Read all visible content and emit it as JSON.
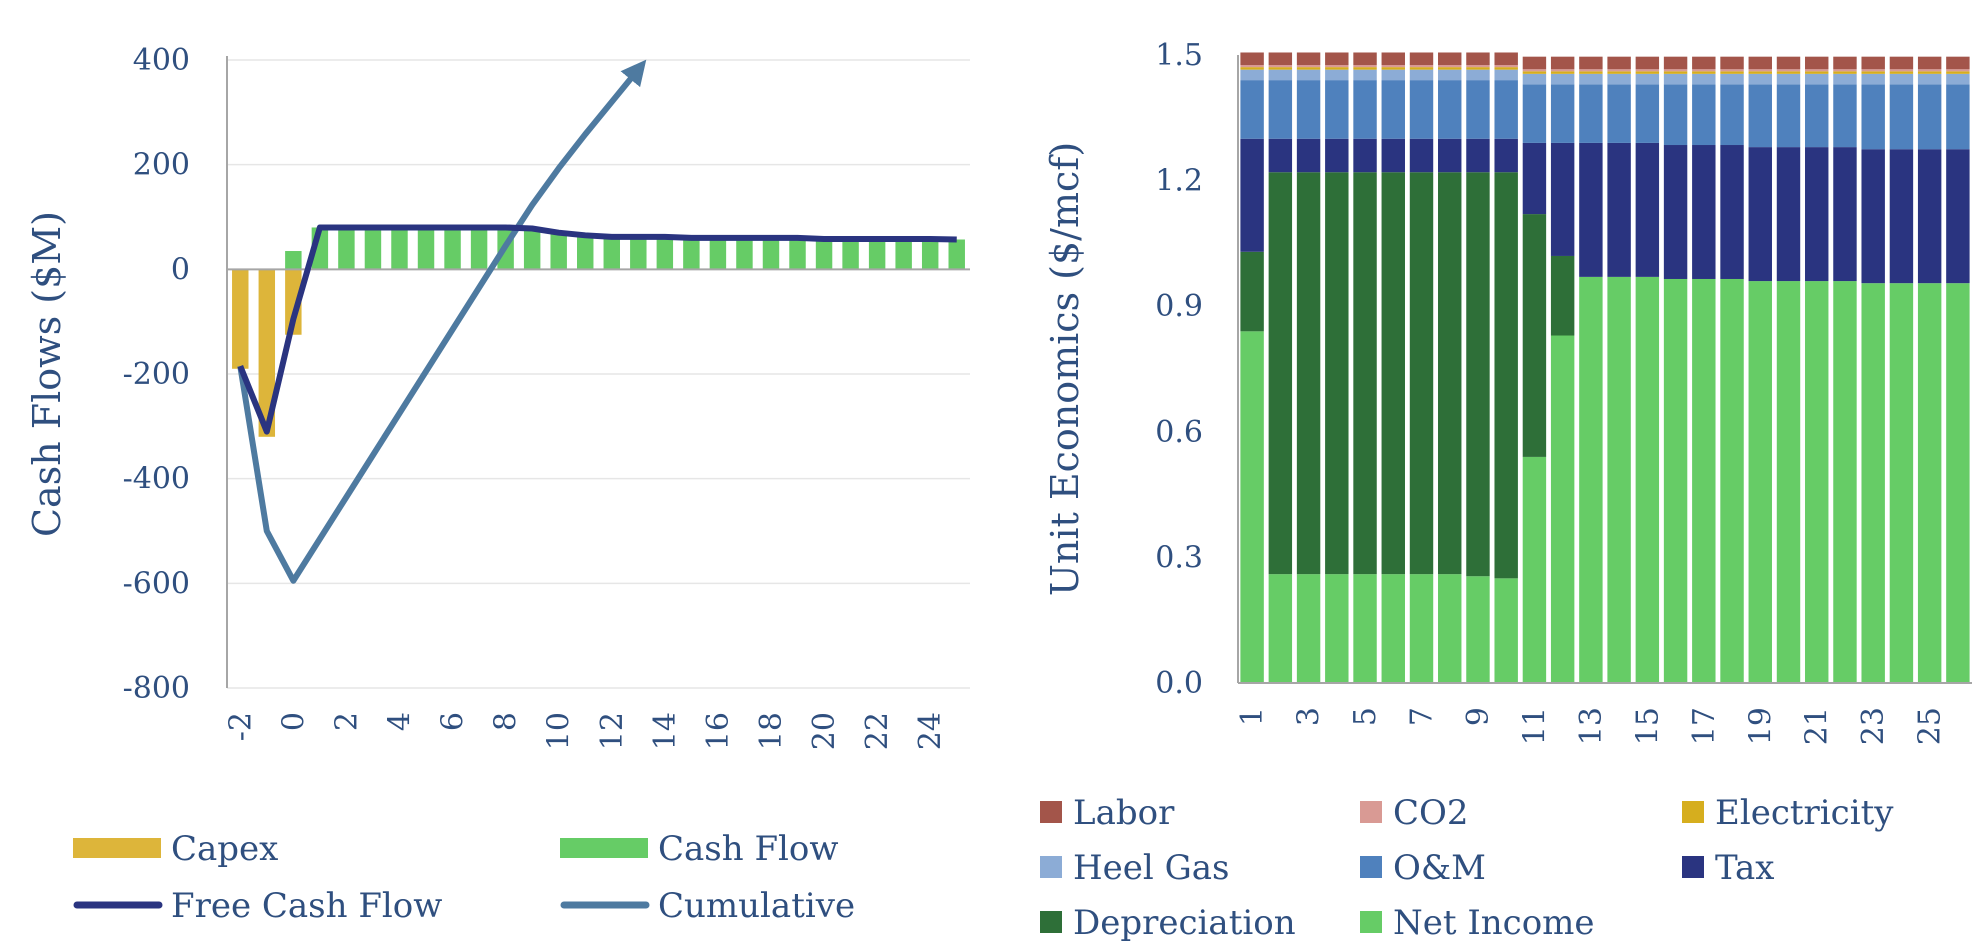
{
  "colors": {
    "axis_text": "#2F4F7F",
    "capex": "#DDB53A",
    "cash_flow": "#66CC66",
    "free_cash_flow": "#2A3480",
    "cumulative": "#4E7AA0",
    "labor": "#A3554A",
    "co2": "#D99A94",
    "electricity": "#D6AE1E",
    "heel_gas": "#8CACD6",
    "om": "#4F81BD",
    "tax": "#2A3480",
    "depreciation": "#2E6F38",
    "net_income": "#66CC66"
  },
  "chart_data": [
    {
      "type": "bar",
      "ylabel": "Cash Flows ($M)",
      "ylim": [
        -800,
        400
      ],
      "yticks": [
        "400",
        "200",
        "0",
        "-200",
        "-400",
        "-600",
        "-800"
      ],
      "xlim": [
        -2.5,
        25.5
      ],
      "xticks": [
        "-2",
        "0",
        "2",
        "4",
        "6",
        "8",
        "10",
        "12",
        "14",
        "16",
        "18",
        "20",
        "22",
        "24"
      ],
      "grid": true,
      "legend_position": "bottom",
      "series": [
        {
          "name": "Capex",
          "kind": "bar",
          "color": "#DDB53A",
          "x": [
            -2,
            -1,
            0
          ],
          "values": [
            -190,
            -320,
            -125
          ]
        },
        {
          "name": "Cash Flow",
          "kind": "bar",
          "color": "#66CC66",
          "x": [
            0,
            1,
            2,
            3,
            4,
            5,
            6,
            7,
            8,
            9,
            10,
            11,
            12,
            13,
            14,
            15,
            16,
            17,
            18,
            19,
            20,
            21,
            22,
            23,
            24,
            25
          ],
          "values": [
            35,
            80,
            80,
            80,
            80,
            80,
            80,
            80,
            80,
            78,
            70,
            65,
            62,
            62,
            62,
            60,
            60,
            60,
            60,
            60,
            58,
            58,
            58,
            58,
            58,
            57
          ]
        },
        {
          "name": "Free Cash Flow",
          "kind": "line",
          "color": "#2A3480",
          "x": [
            -2,
            -1,
            0,
            1,
            2,
            3,
            4,
            5,
            6,
            7,
            8,
            9,
            10,
            11,
            12,
            13,
            14,
            15,
            16,
            17,
            18,
            19,
            20,
            21,
            22,
            23,
            24,
            25
          ],
          "values": [
            -185,
            -310,
            -95,
            80,
            80,
            80,
            80,
            80,
            80,
            80,
            80,
            78,
            70,
            65,
            62,
            62,
            62,
            60,
            60,
            60,
            60,
            60,
            58,
            58,
            58,
            58,
            58,
            57
          ]
        },
        {
          "name": "Cumulative",
          "kind": "line",
          "color": "#4E7AA0",
          "arrow": true,
          "x": [
            -2,
            -1,
            0,
            1,
            2,
            3,
            4,
            5,
            6,
            7,
            8,
            9,
            10,
            11,
            12,
            13
          ],
          "values": [
            -185,
            -500,
            -595,
            -515,
            -435,
            -355,
            -275,
            -195,
            -115,
            -35,
            45,
            123,
            193,
            258,
            320,
            382
          ]
        }
      ]
    },
    {
      "type": "bar",
      "stacked": true,
      "ylabel": "Unit Economics ($/mcf)",
      "ylim": [
        0,
        1.5
      ],
      "yticks": [
        "1.5",
        "1.2",
        "0.9",
        "0.6",
        "0.3",
        "0.0"
      ],
      "categories": [
        "1",
        "2",
        "3",
        "4",
        "5",
        "6",
        "7",
        "8",
        "9",
        "10",
        "11",
        "12",
        "13",
        "14",
        "15",
        "16",
        "17",
        "18",
        "19",
        "20",
        "21",
        "22",
        "23",
        "24",
        "25",
        "26"
      ],
      "xticks": [
        "1",
        "3",
        "5",
        "7",
        "9",
        "11",
        "13",
        "15",
        "17",
        "19",
        "21",
        "23",
        "25"
      ],
      "legend_position": "bottom",
      "series": [
        {
          "name": "Net Income",
          "color": "#66CC66",
          "values": [
            0.84,
            0.26,
            0.26,
            0.26,
            0.26,
            0.26,
            0.26,
            0.26,
            0.255,
            0.25,
            0.54,
            0.83,
            0.97,
            0.97,
            0.97,
            0.965,
            0.965,
            0.965,
            0.96,
            0.96,
            0.96,
            0.96,
            0.955,
            0.955,
            0.955,
            0.955
          ]
        },
        {
          "name": "Depreciation",
          "color": "#2E6F38",
          "values": [
            0.19,
            0.96,
            0.96,
            0.96,
            0.96,
            0.96,
            0.96,
            0.96,
            0.965,
            0.97,
            0.58,
            0.19,
            0,
            0,
            0,
            0,
            0,
            0,
            0,
            0,
            0,
            0,
            0,
            0,
            0,
            0
          ]
        },
        {
          "name": "Tax",
          "color": "#2A3480",
          "values": [
            0.27,
            0.08,
            0.08,
            0.08,
            0.08,
            0.08,
            0.08,
            0.08,
            0.08,
            0.08,
            0.17,
            0.27,
            0.32,
            0.32,
            0.32,
            0.32,
            0.32,
            0.32,
            0.32,
            0.32,
            0.32,
            0.32,
            0.32,
            0.32,
            0.32,
            0.32
          ]
        },
        {
          "name": "O&M",
          "color": "#4F81BD",
          "values": [
            0.14,
            0.14,
            0.14,
            0.14,
            0.14,
            0.14,
            0.14,
            0.14,
            0.14,
            0.14,
            0.14,
            0.14,
            0.14,
            0.14,
            0.14,
            0.145,
            0.145,
            0.145,
            0.15,
            0.15,
            0.15,
            0.15,
            0.155,
            0.155,
            0.155,
            0.155
          ]
        },
        {
          "name": "Heel Gas",
          "color": "#8CACD6",
          "values": [
            0.025,
            0.025,
            0.025,
            0.025,
            0.025,
            0.025,
            0.025,
            0.025,
            0.025,
            0.025,
            0.025,
            0.025,
            0.025,
            0.025,
            0.025,
            0.025,
            0.025,
            0.025,
            0.025,
            0.025,
            0.025,
            0.025,
            0.025,
            0.025,
            0.025,
            0.025
          ]
        },
        {
          "name": "Electricity",
          "color": "#D6AE1E",
          "values": [
            0.006,
            0.006,
            0.006,
            0.006,
            0.006,
            0.006,
            0.006,
            0.006,
            0.006,
            0.006,
            0.006,
            0.006,
            0.006,
            0.006,
            0.006,
            0.006,
            0.006,
            0.006,
            0.006,
            0.006,
            0.006,
            0.006,
            0.006,
            0.006,
            0.006,
            0.006
          ]
        },
        {
          "name": "CO2",
          "color": "#D99A94",
          "values": [
            0.005,
            0.005,
            0.005,
            0.005,
            0.005,
            0.005,
            0.005,
            0.005,
            0.005,
            0.005,
            0.005,
            0.005,
            0.005,
            0.005,
            0.005,
            0.005,
            0.005,
            0.005,
            0.005,
            0.005,
            0.005,
            0.005,
            0.005,
            0.005,
            0.005,
            0.005
          ]
        },
        {
          "name": "Labor",
          "color": "#A3554A",
          "values": [
            0.03,
            0.03,
            0.03,
            0.03,
            0.03,
            0.03,
            0.03,
            0.03,
            0.03,
            0.03,
            0.03,
            0.03,
            0.03,
            0.03,
            0.03,
            0.03,
            0.03,
            0.03,
            0.03,
            0.03,
            0.03,
            0.03,
            0.03,
            0.03,
            0.03,
            0.03
          ]
        }
      ],
      "legend_order": [
        "Labor",
        "CO2",
        "Electricity",
        "Heel Gas",
        "O&M",
        "Tax",
        "Depreciation",
        "Net Income"
      ]
    }
  ]
}
